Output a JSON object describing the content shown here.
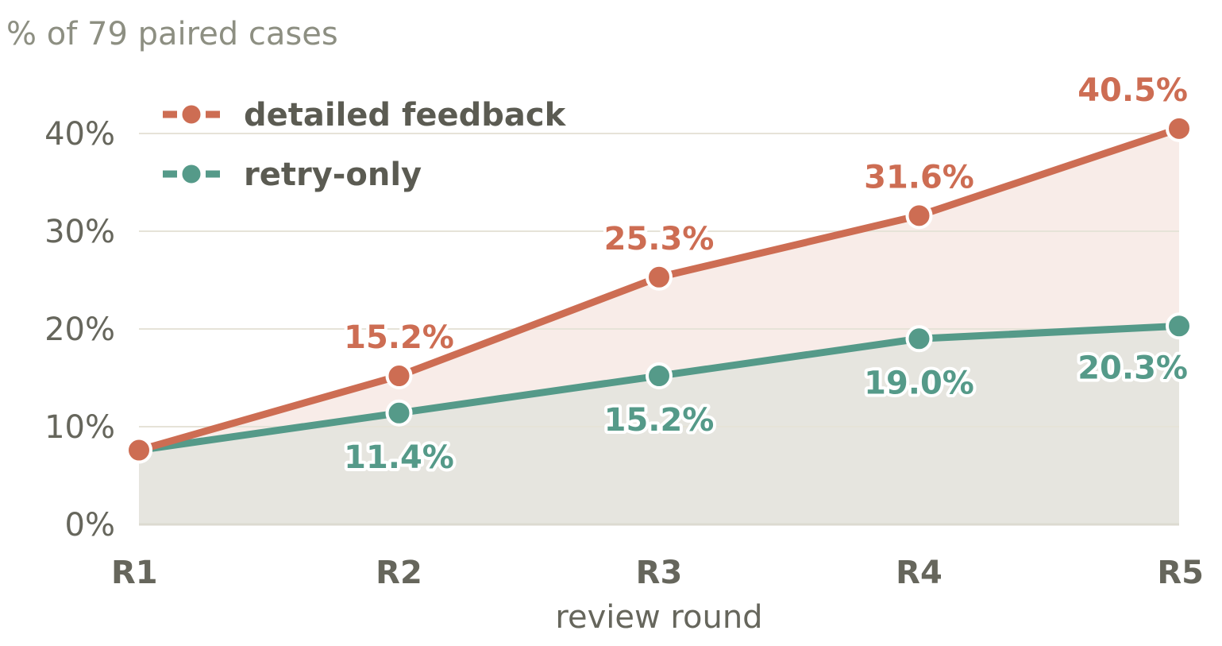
{
  "chart_data": {
    "type": "line",
    "ylabel": "% of 79 paired cases",
    "xlabel": "review round",
    "categories": [
      "R1",
      "R2",
      "R3",
      "R4",
      "R5"
    ],
    "ylim": [
      0,
      45
    ],
    "yticks": [
      0,
      10,
      20,
      30,
      40
    ],
    "ytick_labels": [
      "0%",
      "10%",
      "20%",
      "30%",
      "40%"
    ],
    "grid": true,
    "legend_position": "top-left",
    "series": [
      {
        "name": "detailed feedback",
        "color": "#cd6d53",
        "fill": "#f8ece8",
        "values": [
          7.6,
          15.2,
          25.3,
          31.6,
          40.5
        ],
        "labels": [
          "",
          "15.2%",
          "25.3%",
          "31.6%",
          "40.5%"
        ],
        "label_side": "above"
      },
      {
        "name": "retry-only",
        "color": "#559a89",
        "fill": "#e6e5df",
        "values": [
          7.6,
          11.4,
          15.2,
          19.0,
          20.3
        ],
        "labels": [
          "",
          "11.4%",
          "15.2%",
          "19.0%",
          "20.3%"
        ],
        "label_side": "below"
      }
    ]
  }
}
